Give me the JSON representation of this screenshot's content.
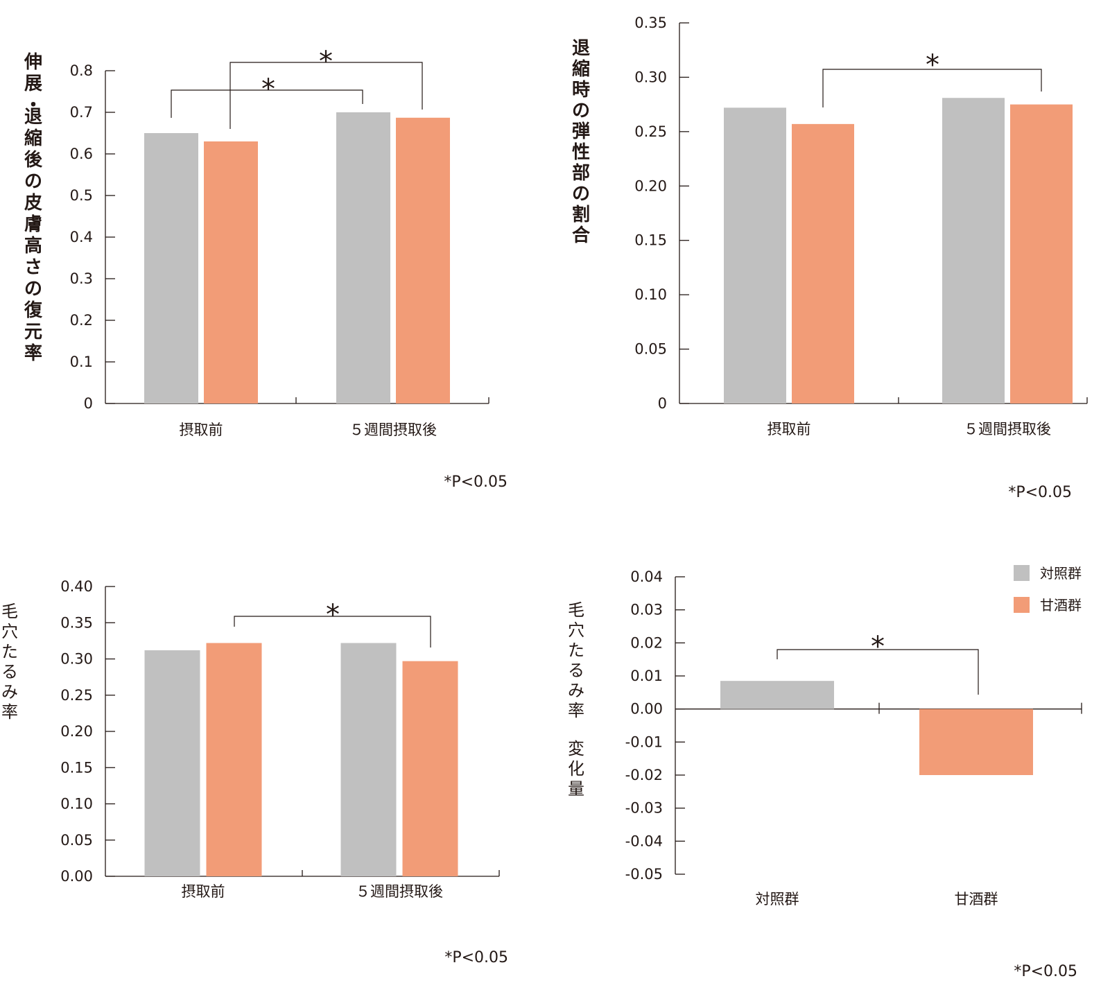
{
  "colors": {
    "control": "#c0c0c0",
    "amazake": "#f29c77",
    "axis": "#231815"
  },
  "legend": [
    {
      "label": "対照群",
      "color_key": "control"
    },
    {
      "label": "甘酒群",
      "color_key": "amazake"
    }
  ],
  "chart_data": [
    {
      "type": "bar",
      "ylabel": "伸展・退縮後の皮膚高さの復元率",
      "categories": [
        "摂取前",
        "５週間摂取後"
      ],
      "series": [
        {
          "name": "対照群",
          "values": [
            0.65,
            0.7
          ]
        },
        {
          "name": "甘酒群",
          "values": [
            0.63,
            0.687
          ]
        }
      ],
      "ylim": [
        0,
        0.8
      ],
      "yticks": [
        "0",
        "0.1",
        "0.2",
        "0.3",
        "0.4",
        "0.5",
        "0.6",
        "0.7",
        "0.8"
      ],
      "significance": [
        "*",
        "*"
      ],
      "note": "*P<0.05"
    },
    {
      "type": "bar",
      "ylabel": "退縮時の弾性部の割合",
      "categories": [
        "摂取前",
        "５週間摂取後"
      ],
      "series": [
        {
          "name": "対照群",
          "values": [
            0.272,
            0.281
          ]
        },
        {
          "name": "甘酒群",
          "values": [
            0.257,
            0.275
          ]
        }
      ],
      "ylim": [
        0,
        0.35
      ],
      "yticks": [
        "0",
        "0.05",
        "0.10",
        "0.15",
        "0.20",
        "0.25",
        "0.30",
        "0.35"
      ],
      "significance": [
        "*"
      ],
      "note": "*P<0.05"
    },
    {
      "type": "bar",
      "ylabel": "毛穴たるみ率",
      "categories": [
        "摂取前",
        "５週間摂取後"
      ],
      "series": [
        {
          "name": "対照群",
          "values": [
            0.312,
            0.322
          ]
        },
        {
          "name": "甘酒群",
          "values": [
            0.322,
            0.297
          ]
        }
      ],
      "ylim": [
        0,
        0.4
      ],
      "yticks": [
        "0.00",
        "0.05",
        "0.10",
        "0.15",
        "0.20",
        "0.25",
        "0.30",
        "0.35",
        "0.40"
      ],
      "significance": [
        "*"
      ],
      "note": "*P<0.05"
    },
    {
      "type": "bar",
      "ylabel": "毛穴たるみ率　変化量",
      "categories": [
        "対照群",
        "甘酒群"
      ],
      "series": [
        {
          "name": "変化量",
          "values": [
            0.0085,
            -0.02
          ]
        }
      ],
      "ylim": [
        -0.05,
        0.04
      ],
      "yticks": [
        "-0.05",
        "-0.04",
        "-0.03",
        "-0.02",
        "-0.01",
        "0.00",
        "0.01",
        "0.02",
        "0.03",
        "0.04"
      ],
      "significance": [
        "*"
      ],
      "note": "*P<0.05"
    }
  ]
}
